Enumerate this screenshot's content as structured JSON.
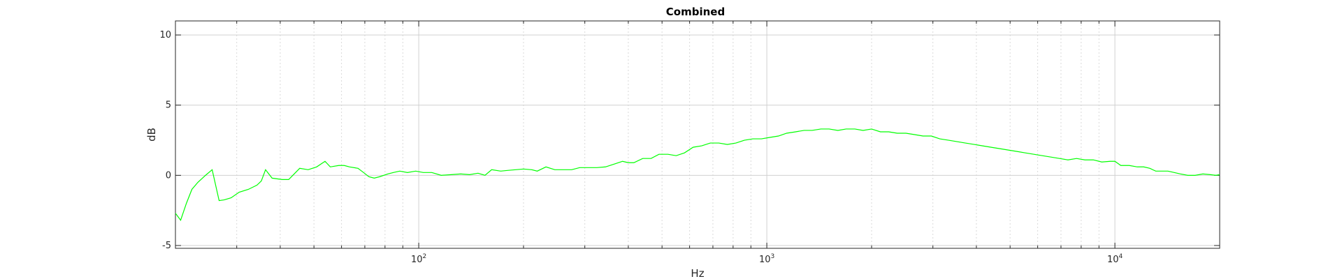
{
  "chart_data": {
    "type": "line",
    "title": "Combined",
    "xlabel": "Hz",
    "ylabel": "dB",
    "x_scale": "log",
    "xlim": [
      20,
      20000
    ],
    "ylim": [
      -5.2,
      11
    ],
    "grid": true,
    "x_ticks": [
      {
        "value": 100,
        "base": "10",
        "exp": "2"
      },
      {
        "value": 1000,
        "base": "10",
        "exp": "3"
      },
      {
        "value": 10000,
        "base": "10",
        "exp": "4"
      }
    ],
    "y_ticks": [
      {
        "value": -5,
        "label": "-5"
      },
      {
        "value": 0,
        "label": "0"
      },
      {
        "value": 5,
        "label": "5"
      },
      {
        "value": 10,
        "label": "10"
      }
    ],
    "series": [
      {
        "color": "#00ff00",
        "points": [
          [
            20,
            -2.7
          ],
          [
            20.7,
            -3.2
          ],
          [
            21.5,
            -2.0
          ],
          [
            22.3,
            -1.0
          ],
          [
            23.2,
            -0.5
          ],
          [
            24.4,
            0.0
          ],
          [
            25.5,
            0.4
          ],
          [
            26.7,
            -1.8
          ],
          [
            27.6,
            -1.75
          ],
          [
            28.9,
            -1.6
          ],
          [
            30.5,
            -1.2
          ],
          [
            32.4,
            -1.0
          ],
          [
            34.3,
            -0.7
          ],
          [
            35.3,
            -0.4
          ],
          [
            36.3,
            0.4
          ],
          [
            37.9,
            -0.2
          ],
          [
            40.5,
            -0.3
          ],
          [
            42.3,
            -0.3
          ],
          [
            45.5,
            0.5
          ],
          [
            48.1,
            0.4
          ],
          [
            50.9,
            0.6
          ],
          [
            53.8,
            1.0
          ],
          [
            55.7,
            0.6
          ],
          [
            58.9,
            0.7
          ],
          [
            61.1,
            0.7
          ],
          [
            63.3,
            0.6
          ],
          [
            66.9,
            0.5
          ],
          [
            69.4,
            0.2
          ],
          [
            71.9,
            -0.1
          ],
          [
            74.5,
            -0.2
          ],
          [
            77.2,
            -0.1
          ],
          [
            81.6,
            0.1
          ],
          [
            84.6,
            0.2
          ],
          [
            88.2,
            0.3
          ],
          [
            92.8,
            0.2
          ],
          [
            98.0,
            0.3
          ],
          [
            103.0,
            0.2
          ],
          [
            109.0,
            0.2
          ],
          [
            116.0,
            0.0
          ],
          [
            124.0,
            0.05
          ],
          [
            132.0,
            0.1
          ],
          [
            140.0,
            0.05
          ],
          [
            148.0,
            0.15
          ],
          [
            155.0,
            0.0
          ],
          [
            162.0,
            0.4
          ],
          [
            172.0,
            0.3
          ],
          [
            180.0,
            0.35
          ],
          [
            190.0,
            0.4
          ],
          [
            200.0,
            0.45
          ],
          [
            211.0,
            0.4
          ],
          [
            219.0,
            0.3
          ],
          [
            232.0,
            0.6
          ],
          [
            246.0,
            0.4
          ],
          [
            260.0,
            0.4
          ],
          [
            275.0,
            0.4
          ],
          [
            290.0,
            0.55
          ],
          [
            307.0,
            0.55
          ],
          [
            325.0,
            0.55
          ],
          [
            344.0,
            0.6
          ],
          [
            364.0,
            0.8
          ],
          [
            385.0,
            1.0
          ],
          [
            400.0,
            0.9
          ],
          [
            415.0,
            0.9
          ],
          [
            440.0,
            1.2
          ],
          [
            465.0,
            1.2
          ],
          [
            490.0,
            1.5
          ],
          [
            520.0,
            1.5
          ],
          [
            549.0,
            1.4
          ],
          [
            580.0,
            1.6
          ],
          [
            614.0,
            2.0
          ],
          [
            650.0,
            2.1
          ],
          [
            688.0,
            2.3
          ],
          [
            728.0,
            2.3
          ],
          [
            770.0,
            2.2
          ],
          [
            815.0,
            2.3
          ],
          [
            862.0,
            2.5
          ],
          [
            912.0,
            2.6
          ],
          [
            965.0,
            2.6
          ],
          [
            1020.0,
            2.7
          ],
          [
            1080.0,
            2.8
          ],
          [
            1140.0,
            3.0
          ],
          [
            1210.0,
            3.1
          ],
          [
            1280.0,
            3.2
          ],
          [
            1350.0,
            3.2
          ],
          [
            1430.0,
            3.3
          ],
          [
            1510.0,
            3.3
          ],
          [
            1600.0,
            3.2
          ],
          [
            1690.0,
            3.3
          ],
          [
            1790.0,
            3.3
          ],
          [
            1890.0,
            3.2
          ],
          [
            2000.0,
            3.3
          ],
          [
            2120.0,
            3.1
          ],
          [
            2240.0,
            3.1
          ],
          [
            2370.0,
            3.0
          ],
          [
            2510.0,
            3.0
          ],
          [
            2660.0,
            2.9
          ],
          [
            2810.0,
            2.8
          ],
          [
            2970.0,
            2.8
          ],
          [
            3140.0,
            2.6
          ],
          [
            3330.0,
            2.5
          ],
          [
            3520.0,
            2.4
          ],
          [
            3720.0,
            2.3
          ],
          [
            3940.0,
            2.2
          ],
          [
            4170.0,
            2.1
          ],
          [
            4410.0,
            2.0
          ],
          [
            4670.0,
            1.9
          ],
          [
            4940.0,
            1.8
          ],
          [
            5230.0,
            1.7
          ],
          [
            5530.0,
            1.6
          ],
          [
            5850.0,
            1.5
          ],
          [
            6190.0,
            1.4
          ],
          [
            6550.0,
            1.3
          ],
          [
            6930.0,
            1.2
          ],
          [
            7330.0,
            1.1
          ],
          [
            7760.0,
            1.2
          ],
          [
            8200.0,
            1.1
          ],
          [
            8670.0,
            1.1
          ],
          [
            9170.0,
            0.95
          ],
          [
            9700.0,
            1.0
          ],
          [
            10000.0,
            1.0
          ],
          [
            10400.0,
            0.7
          ],
          [
            11000.0,
            0.7
          ],
          [
            11600.0,
            0.6
          ],
          [
            12100.0,
            0.6
          ],
          [
            12600.0,
            0.5
          ],
          [
            13100.0,
            0.3
          ],
          [
            13700.0,
            0.3
          ],
          [
            14200.0,
            0.3
          ],
          [
            14800.0,
            0.2
          ],
          [
            15400.0,
            0.1
          ],
          [
            16200.0,
            0.0
          ],
          [
            17000.0,
            0.0
          ],
          [
            17900.0,
            0.1
          ],
          [
            18800.0,
            0.05
          ],
          [
            19500.0,
            0.0
          ],
          [
            20000.0,
            0.05
          ]
        ]
      }
    ]
  }
}
